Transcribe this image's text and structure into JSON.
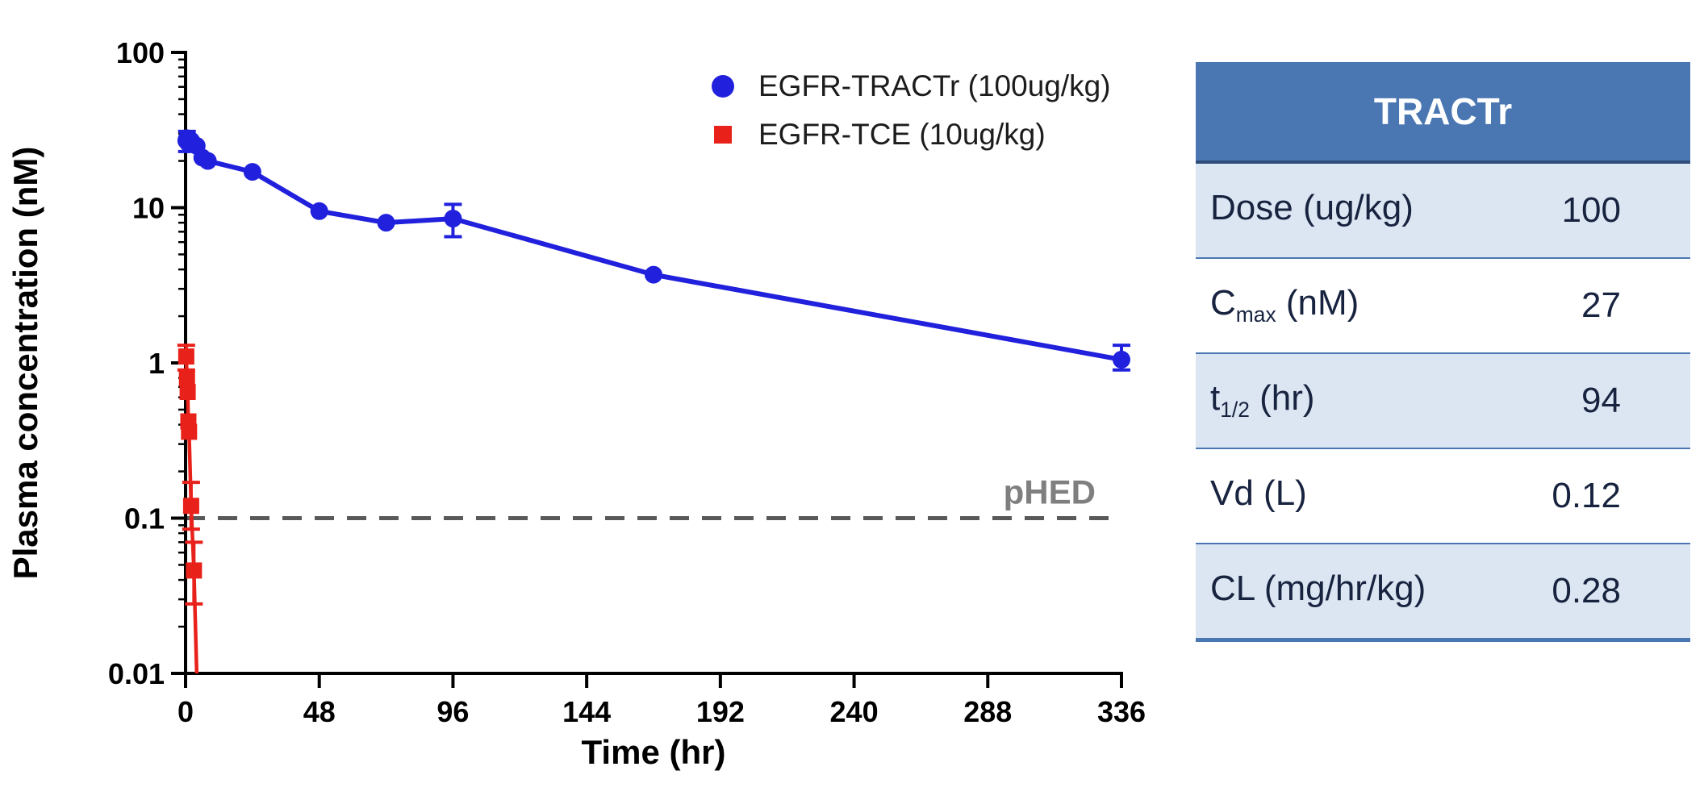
{
  "chart_data": {
    "type": "line",
    "title": "",
    "xlabel": "Time (hr)",
    "ylabel": "Plasma concentration (nM)",
    "xlim": [
      0,
      336
    ],
    "x_ticks": [
      0,
      48,
      96,
      144,
      192,
      240,
      288,
      336
    ],
    "y_scale": "log",
    "ylim": [
      0.01,
      100
    ],
    "y_ticks": [
      0.01,
      0.1,
      1,
      10,
      100
    ],
    "y_tick_labels": [
      "0.01",
      "0.1",
      "1",
      "10",
      "100"
    ],
    "grid": false,
    "legend_position": "top-right",
    "reference_line": {
      "value": 0.1,
      "label": "pHED",
      "color": "#7f7f7f"
    },
    "series": [
      {
        "name": "EGFR-TRACTr (100ug/kg)",
        "color": "#2121dd",
        "marker": "circle",
        "points": [
          {
            "t": 0.25,
            "c": 27
          },
          {
            "t": 0.5,
            "c": 28,
            "err": [
              23,
              31
            ]
          },
          {
            "t": 1,
            "c": 26
          },
          {
            "t": 2,
            "c": 27
          },
          {
            "t": 4,
            "c": 25
          },
          {
            "t": 6,
            "c": 21
          },
          {
            "t": 8,
            "c": 20
          },
          {
            "t": 24,
            "c": 17
          },
          {
            "t": 48,
            "c": 9.5
          },
          {
            "t": 72,
            "c": 8
          },
          {
            "t": 96,
            "c": 8.5,
            "err": [
              6.5,
              10.5
            ]
          },
          {
            "t": 168,
            "c": 3.7
          },
          {
            "t": 336,
            "c": 1.05,
            "err": [
              0.9,
              1.3
            ]
          }
        ]
      },
      {
        "name": "EGFR-TCE (10ug/kg)",
        "color": "#e8211a",
        "marker": "square",
        "points": [
          {
            "t": 0.25,
            "c": 1.1,
            "err": [
              0.9,
              1.3
            ]
          },
          {
            "t": 0.5,
            "c": 0.8
          },
          {
            "t": 0.75,
            "c": 0.65
          },
          {
            "t": 1,
            "c": 0.42
          },
          {
            "t": 1.25,
            "c": 0.36
          },
          {
            "t": 2,
            "c": 0.12,
            "err": [
              0.085,
              0.17
            ]
          },
          {
            "t": 3,
            "c": 0.046,
            "err": [
              0.028,
              0.07
            ]
          }
        ],
        "line_tail": {
          "t": 4,
          "c": 0.01
        }
      }
    ]
  },
  "table": {
    "title": "TRACTr",
    "rows": [
      {
        "label_pre": "Dose (ug/kg)",
        "label_sub": "",
        "label_post": "",
        "value": "100",
        "shaded": true
      },
      {
        "label_pre": "C",
        "label_sub": "max",
        "label_post": " (nM)",
        "value": "27",
        "shaded": false
      },
      {
        "label_pre": "t",
        "label_sub": "1/2",
        "label_post": " (hr)",
        "value": "94",
        "shaded": true
      },
      {
        "label_pre": "Vd (L)",
        "label_sub": "",
        "label_post": "",
        "value": "0.12",
        "shaded": false
      },
      {
        "label_pre": "CL (mg/hr/kg)",
        "label_sub": "",
        "label_post": "",
        "value": "0.28",
        "shaded": true
      }
    ],
    "colors": {
      "header_bg": "#4a77b2",
      "header_text": "#ffffff",
      "shaded_row_bg": "#dce6f3",
      "row_text": "#17233f",
      "border": "#4a77b2"
    }
  }
}
